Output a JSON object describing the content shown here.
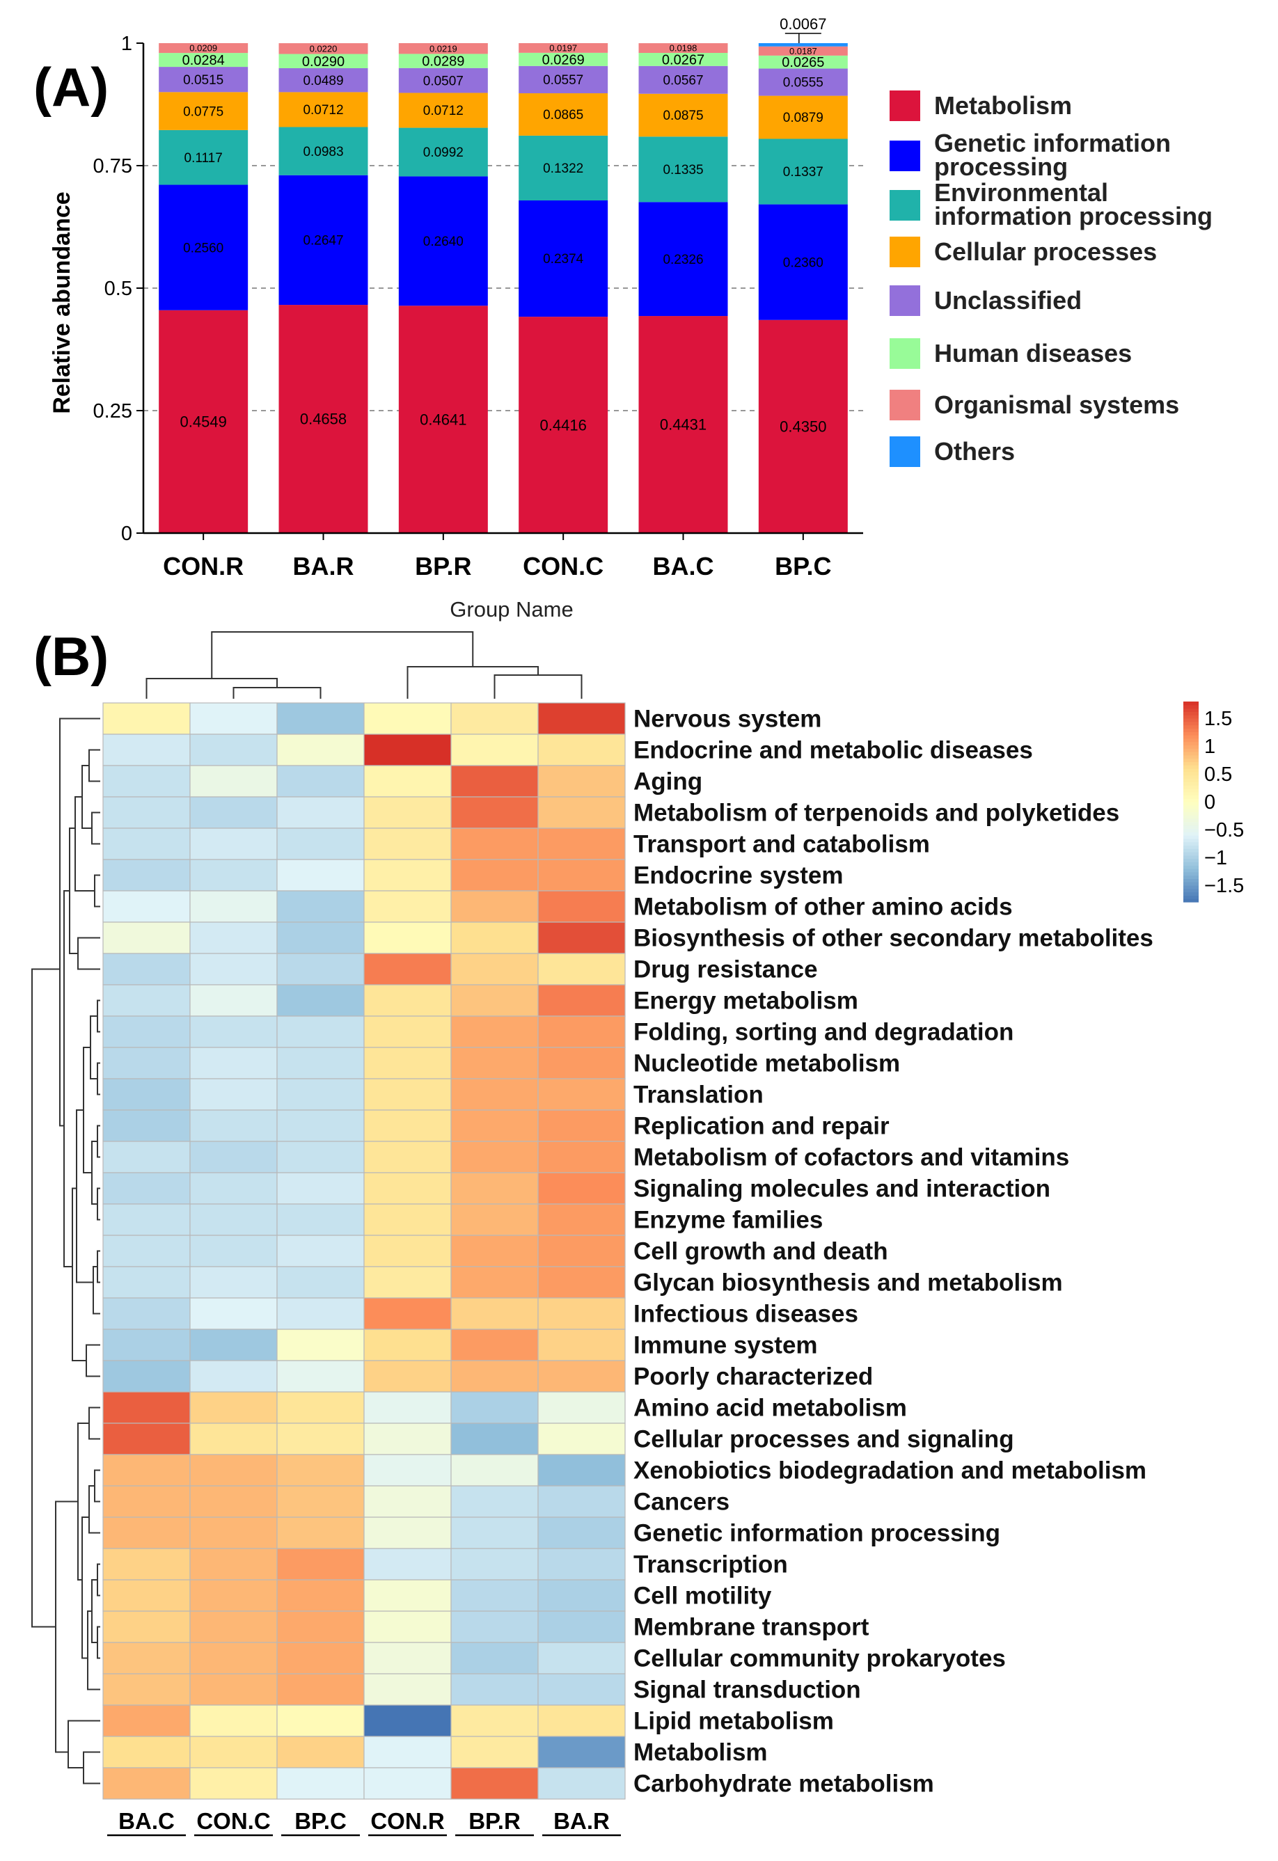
{
  "chart_data": [
    {
      "type": "bar",
      "panel_label": "(A)",
      "stacked": true,
      "ylabel": "Relative abundance",
      "xlabel": "Group Name",
      "ylim": [
        0,
        1
      ],
      "yticks": [
        {
          "value": 0,
          "label": "0"
        },
        {
          "value": 0.25,
          "label": "0.25"
        },
        {
          "value": 0.5,
          "label": "0.5"
        },
        {
          "value": 0.75,
          "label": "0.75"
        },
        {
          "value": 1,
          "label": "1"
        }
      ],
      "grid": "dashed at 0.25, 0.5, 0.75",
      "legend_position": "right",
      "categories": [
        "CON.R",
        "BA.R",
        "BP.R",
        "CON.C",
        "BA.C",
        "BP.C"
      ],
      "series": [
        {
          "name": "Metabolism",
          "legend": "Metabolism",
          "color": "#dc143c",
          "values": [
            0.4549,
            0.4658,
            0.4641,
            0.4416,
            0.4431,
            0.435
          ],
          "labels": [
            "0.4549",
            "0.4658",
            "0.4641",
            "0.4416",
            "0.4431",
            "0.4350"
          ]
        },
        {
          "name": "Genetic information processing",
          "legend": "Genetic information|processing",
          "color": "#0000ff",
          "values": [
            0.256,
            0.2647,
            0.264,
            0.2374,
            0.2326,
            0.236
          ],
          "labels": [
            "0.2560",
            "0.2647",
            "0.2640",
            "0.2374",
            "0.2326",
            "0.2360"
          ]
        },
        {
          "name": "Environmental information processing",
          "legend": "Environmental|information processing",
          "color": "#20b2aa",
          "values": [
            0.1117,
            0.0983,
            0.0992,
            0.1322,
            0.1335,
            0.1337
          ],
          "labels": [
            "0.1117",
            "0.0983",
            "0.0992",
            "0.1322",
            "0.1335",
            "0.1337"
          ]
        },
        {
          "name": "Cellular processes",
          "legend": "Cellular processes",
          "color": "#ffa500",
          "values": [
            0.0775,
            0.0712,
            0.0712,
            0.0865,
            0.0875,
            0.0879
          ],
          "labels": [
            "0.0775",
            "0.0712",
            "0.0712",
            "0.0865",
            "0.0875",
            "0.0879"
          ]
        },
        {
          "name": "Unclassified",
          "legend": "Unclassified",
          "color": "#9370db",
          "values": [
            0.0515,
            0.0489,
            0.0507,
            0.0557,
            0.0567,
            0.0555
          ],
          "labels": [
            "0.0515",
            "0.0489",
            "0.0507",
            "0.0557",
            "0.0567",
            "0.0555"
          ]
        },
        {
          "name": "Human diseases",
          "legend": "Human diseases",
          "color": "#98fb98",
          "values": [
            0.0284,
            0.029,
            0.0289,
            0.0269,
            0.0267,
            0.0265
          ],
          "labels": [
            "0.0284",
            "0.0290",
            "0.0289",
            "0.0269",
            "0.0267",
            "0.0265"
          ]
        },
        {
          "name": "Organismal systems",
          "legend": "Organismal systems",
          "color": "#f08080",
          "values": [
            0.0209,
            0.022,
            0.0219,
            0.0197,
            0.0198,
            0.0187
          ],
          "labels": [
            "0.0209",
            "0.0220",
            "0.0219",
            "0.0197",
            "0.0198",
            "0.0187"
          ]
        },
        {
          "name": "Others",
          "legend": "Others",
          "color": "#1e90ff",
          "values": [
            0,
            0,
            0,
            0,
            0,
            0.0067
          ],
          "labels": [
            "",
            "",
            "",
            "",
            "",
            ""
          ]
        }
      ],
      "callout_label": "0.0067"
    },
    {
      "type": "heatmap",
      "panel_label": "(B)",
      "columns": [
        "BA.C",
        "CON.C",
        "BP.C",
        "CON.R",
        "BP.R",
        "BA.R"
      ],
      "rows": [
        "Nervous system",
        "Endocrine and metabolic diseases",
        "Aging",
        "Metabolism of terpenoids and polyketides",
        "Transport and catabolism",
        "Endocrine system",
        "Metabolism of other amino acids",
        "Biosynthesis of other secondary metabolites",
        "Drug resistance",
        "Energy metabolism",
        "Folding, sorting and degradation",
        "Nucleotide metabolism",
        "Translation",
        "Replication and repair",
        "Metabolism of cofactors and vitamins",
        "Signaling molecules and interaction",
        "Enzyme families",
        "Cell growth and death",
        "Glycan biosynthesis and metabolism",
        "Infectious diseases",
        "Immune system",
        "Poorly characterized",
        "Amino acid metabolism",
        "Cellular processes and signaling",
        "Xenobiotics biodegradation and metabolism",
        "Cancers",
        "Genetic information processing",
        "Transcription",
        "Cell motility",
        "Membrane transport",
        "Cellular community   prokaryotes",
        "Signal transduction",
        "Lipid metabolism",
        "Metabolism",
        "Carbohydrate metabolism"
      ],
      "values": [
        [
          0.2,
          -0.6,
          -1.1,
          0.1,
          0.4,
          1.7
        ],
        [
          -0.7,
          -0.8,
          -0.2,
          1.8,
          0.2,
          0.5
        ],
        [
          -0.8,
          -0.4,
          -0.9,
          0.2,
          1.5,
          0.8
        ],
        [
          -0.8,
          -0.9,
          -0.7,
          0.4,
          1.4,
          0.8
        ],
        [
          -0.8,
          -0.7,
          -0.8,
          0.4,
          1.1,
          1.1
        ],
        [
          -0.9,
          -0.8,
          -0.6,
          0.3,
          1.1,
          1.1
        ],
        [
          -0.6,
          -0.5,
          -1.0,
          0.3,
          0.9,
          1.3
        ],
        [
          -0.3,
          -0.7,
          -1.0,
          0.1,
          0.6,
          1.6
        ],
        [
          -0.9,
          -0.7,
          -0.9,
          1.3,
          0.7,
          0.5
        ],
        [
          -0.8,
          -0.5,
          -1.1,
          0.5,
          0.8,
          1.3
        ],
        [
          -0.9,
          -0.8,
          -0.8,
          0.5,
          1.0,
          1.1
        ],
        [
          -0.9,
          -0.7,
          -0.8,
          0.5,
          1.0,
          1.1
        ],
        [
          -1.0,
          -0.7,
          -0.8,
          0.5,
          1.0,
          1.0
        ],
        [
          -1.0,
          -0.8,
          -0.8,
          0.5,
          1.0,
          1.1
        ],
        [
          -0.8,
          -0.9,
          -0.8,
          0.5,
          1.0,
          1.1
        ],
        [
          -0.9,
          -0.8,
          -0.7,
          0.5,
          0.9,
          1.2
        ],
        [
          -0.8,
          -0.8,
          -0.8,
          0.5,
          0.9,
          1.1
        ],
        [
          -0.8,
          -0.8,
          -0.7,
          0.5,
          1.0,
          1.1
        ],
        [
          -0.8,
          -0.7,
          -0.8,
          0.4,
          1.0,
          1.1
        ],
        [
          -0.9,
          -0.6,
          -0.7,
          1.2,
          0.7,
          0.7
        ],
        [
          -1.0,
          -1.1,
          -0.1,
          0.6,
          1.1,
          0.7
        ],
        [
          -1.1,
          -0.7,
          -0.5,
          0.7,
          0.9,
          0.9
        ],
        [
          1.5,
          0.7,
          0.5,
          -0.5,
          -1.0,
          -0.4
        ],
        [
          1.5,
          0.5,
          0.4,
          -0.3,
          -1.2,
          -0.2
        ],
        [
          0.9,
          0.9,
          0.8,
          -0.5,
          -0.4,
          -1.2
        ],
        [
          0.9,
          0.9,
          0.8,
          -0.3,
          -0.8,
          -0.9
        ],
        [
          0.9,
          0.9,
          0.8,
          -0.3,
          -0.8,
          -1.0
        ],
        [
          0.7,
          0.9,
          1.1,
          -0.7,
          -0.8,
          -0.9
        ],
        [
          0.7,
          0.9,
          1.0,
          -0.2,
          -0.9,
          -1.0
        ],
        [
          0.7,
          0.9,
          1.0,
          -0.2,
          -0.9,
          -1.0
        ],
        [
          0.8,
          0.9,
          1.0,
          -0.3,
          -1.0,
          -0.8
        ],
        [
          0.8,
          0.9,
          1.0,
          -0.3,
          -0.9,
          -0.9
        ],
        [
          1.0,
          0.2,
          0.1,
          -1.8,
          0.4,
          0.5
        ],
        [
          0.6,
          0.5,
          0.7,
          -0.6,
          0.4,
          -1.5
        ],
        [
          0.9,
          0.3,
          -0.6,
          -0.6,
          1.4,
          -0.8
        ]
      ],
      "color_scale": {
        "min": -1.8,
        "max": 1.8,
        "colors": [
          "#4575b4",
          "#91bfdb",
          "#e0f3f8",
          "#ffffbf",
          "#fee090",
          "#fc8d59",
          "#d73027"
        ],
        "ticks": [
          {
            "value": 1.5,
            "label": "1.5"
          },
          {
            "value": 1,
            "label": "1"
          },
          {
            "value": 0.5,
            "label": "0.5"
          },
          {
            "value": 0,
            "label": "0"
          },
          {
            "value": -0.5,
            "label": "−0.5"
          },
          {
            "value": -1,
            "label": "−1"
          },
          {
            "value": -1.5,
            "label": "−1.5"
          }
        ]
      },
      "column_groups_underlined": [
        [
          "BA.C",
          "CON.C",
          "BP.C"
        ],
        [
          "CON.R",
          "BP.R",
          "BA.R"
        ]
      ]
    }
  ]
}
